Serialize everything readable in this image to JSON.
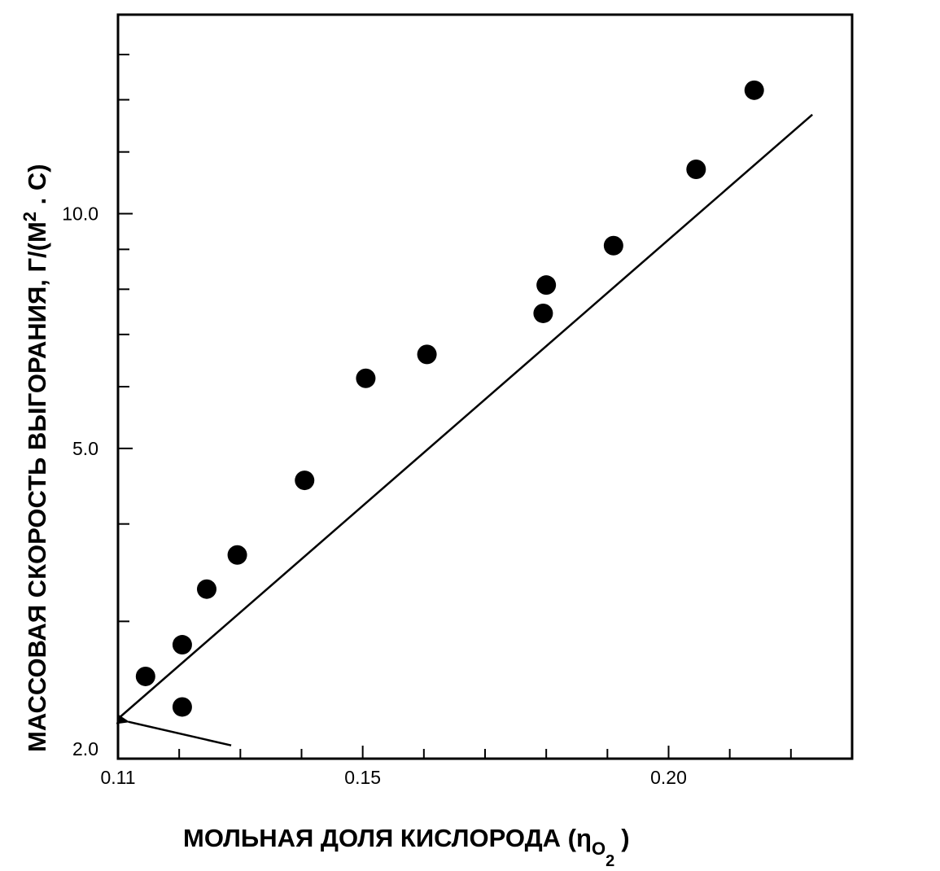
{
  "chart_data": {
    "type": "scatter",
    "title": "",
    "xlabel": "МОЛЬНАЯ ДОЛЯ КИСЛОРОДА (η",
    "xlabel_subscript": "O",
    "xlabel_subsubscript": "2",
    "xlabel_close": ")",
    "ylabel": "МАССОВАЯ СКОРОСТЬ ВЫГОРАНИЯ, Г/(М",
    "ylabel_superscript": "2",
    "ylabel_tail": " . С)",
    "xlim": [
      0.11,
      0.23
    ],
    "ylim": [
      2.0,
      18.0
    ],
    "yscale": "log",
    "x_major_ticks": [
      0.11,
      0.15,
      0.2
    ],
    "x_tick_labels": [
      "0.11",
      "0.15",
      "0.20"
    ],
    "x_minor_ticks": [
      0.12,
      0.13,
      0.14,
      0.16,
      0.17,
      0.18,
      0.19,
      0.21,
      0.22
    ],
    "y_major_ticks": [
      2.0,
      5.0,
      10.0
    ],
    "y_tick_labels": [
      "2.0",
      "5.0",
      "10.0"
    ],
    "y_minor_ticks": [
      3.0,
      4.0,
      6.0,
      7.0,
      8.0,
      9.0,
      12.0,
      14.0,
      16.0
    ],
    "grid": false,
    "legend": "none",
    "series": [
      {
        "type": "scatter",
        "x": [
          0.1145,
          0.1205,
          0.1205,
          0.1245,
          0.1295,
          0.1405,
          0.1505,
          0.1605,
          0.1795,
          0.18,
          0.191,
          0.2045,
          0.214
        ],
        "y": [
          2.55,
          2.33,
          2.8,
          3.3,
          3.65,
          4.55,
          6.15,
          6.6,
          7.45,
          8.1,
          9.1,
          11.4,
          14.4
        ]
      },
      {
        "type": "line",
        "x": [
          0.11,
          0.2235
        ],
        "y": [
          2.25,
          13.4
        ]
      }
    ],
    "annotations": [
      {
        "type": "arrow",
        "from": [
          0.1285,
          2.08
        ],
        "to": [
          0.1117,
          2.23
        ]
      }
    ],
    "colors": {
      "ink": "#000000",
      "background": "#ffffff"
    }
  }
}
